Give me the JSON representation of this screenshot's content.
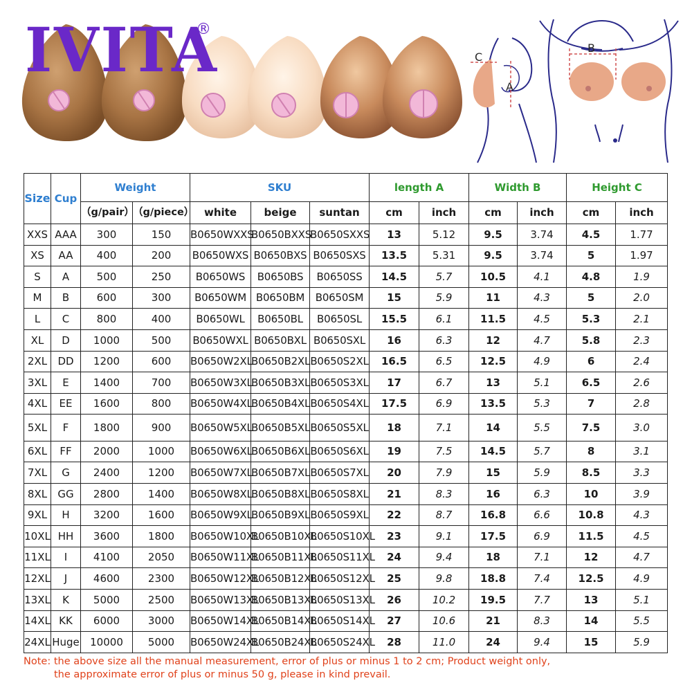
{
  "brand": {
    "name": "IVITA",
    "registered": "®"
  },
  "diagram": {
    "label_a": "A",
    "label_b": "B",
    "label_c": "C"
  },
  "colors": {
    "brand": "#6a28c8",
    "header_blue": "#2f7fd0",
    "header_green": "#2f9a2f",
    "note_red": "#e0421b"
  },
  "table": {
    "headers": {
      "size": "Size",
      "cup": "Cup",
      "weight": "Weight",
      "sku": "SKU",
      "length": "length A",
      "width": "Width B",
      "height": "Height C",
      "g_pair": "（g/pair）",
      "g_piece": "（g/piece）",
      "white": "white",
      "beige": "beige",
      "suntan": "suntan",
      "cm1": "cm",
      "inch1": "inch",
      "cm2": "cm",
      "inch2": "inch",
      "cm3": "cm",
      "inch3": "inch"
    },
    "rows": [
      {
        "size": "XXS",
        "cup": "AAA",
        "pair": "300",
        "piece": "150",
        "white": "B0650WXXS",
        "beige": "B0650BXXS",
        "suntan": "B0650SXXS",
        "len_cm": "13",
        "len_in": "5.12",
        "wid_cm": "9.5",
        "wid_in": "3.74",
        "hei_cm": "4.5",
        "hei_in": "1.77"
      },
      {
        "size": "XS",
        "cup": "AA",
        "pair": "400",
        "piece": "200",
        "white": "B0650WXS",
        "beige": "B0650BXS",
        "suntan": "B0650SXS",
        "len_cm": "13.5",
        "len_in": "5.31",
        "wid_cm": "9.5",
        "wid_in": "3.74",
        "hei_cm": "5",
        "hei_in": "1.97"
      },
      {
        "size": "S",
        "cup": "A",
        "pair": "500",
        "piece": "250",
        "white": "B0650WS",
        "beige": "B0650BS",
        "suntan": "B0650SS",
        "len_cm": "14.5",
        "len_in": "5.7",
        "wid_cm": "10.5",
        "wid_in": "4.1",
        "hei_cm": "4.8",
        "hei_in": "1.9"
      },
      {
        "size": "M",
        "cup": "B",
        "pair": "600",
        "piece": "300",
        "white": "B0650WM",
        "beige": "B0650BM",
        "suntan": "B0650SM",
        "len_cm": "15",
        "len_in": "5.9",
        "wid_cm": "11",
        "wid_in": "4.3",
        "hei_cm": "5",
        "hei_in": "2.0"
      },
      {
        "size": "L",
        "cup": "C",
        "pair": "800",
        "piece": "400",
        "white": "B0650WL",
        "beige": "B0650BL",
        "suntan": "B0650SL",
        "len_cm": "15.5",
        "len_in": "6.1",
        "wid_cm": "11.5",
        "wid_in": "4.5",
        "hei_cm": "5.3",
        "hei_in": "2.1"
      },
      {
        "size": "XL",
        "cup": "D",
        "pair": "1000",
        "piece": "500",
        "white": "B0650WXL",
        "beige": "B0650BXL",
        "suntan": "B0650SXL",
        "len_cm": "16",
        "len_in": "6.3",
        "wid_cm": "12",
        "wid_in": "4.7",
        "hei_cm": "5.8",
        "hei_in": "2.3"
      },
      {
        "size": "2XL",
        "cup": "DD",
        "pair": "1200",
        "piece": "600",
        "white": "B0650W2XL",
        "beige": "B0650B2XL",
        "suntan": "B0650S2XL",
        "len_cm": "16.5",
        "len_in": "6.5",
        "wid_cm": "12.5",
        "wid_in": "4.9",
        "hei_cm": "6",
        "hei_in": "2.4"
      },
      {
        "size": "3XL",
        "cup": "E",
        "pair": "1400",
        "piece": "700",
        "white": "B0650W3XL",
        "beige": "B0650B3XL",
        "suntan": "B0650S3XL",
        "len_cm": "17",
        "len_in": "6.7",
        "wid_cm": "13",
        "wid_in": "5.1",
        "hei_cm": "6.5",
        "hei_in": "2.6"
      },
      {
        "size": "4XL",
        "cup": "EE",
        "pair": "1600",
        "piece": "800",
        "white": "B0650W4XL",
        "beige": "B0650B4XL",
        "suntan": "B0650S4XL",
        "len_cm": "17.5",
        "len_in": "6.9",
        "wid_cm": "13.5",
        "wid_in": "5.3",
        "hei_cm": "7",
        "hei_in": "2.8"
      },
      {
        "size": "5XL",
        "cup": "F",
        "pair": "1800",
        "piece": "900",
        "white": "B0650W5XL",
        "beige": "B0650B5XL",
        "suntan": "B0650S5XL",
        "len_cm": "18",
        "len_in": "7.1",
        "wid_cm": "14",
        "wid_in": "5.5",
        "hei_cm": "7.5",
        "hei_in": "3.0"
      },
      {
        "size": "6XL",
        "cup": "FF",
        "pair": "2000",
        "piece": "1000",
        "white": "B0650W6XL",
        "beige": "B0650B6XL",
        "suntan": "B0650S6XL",
        "len_cm": "19",
        "len_in": "7.5",
        "wid_cm": "14.5",
        "wid_in": "5.7",
        "hei_cm": "8",
        "hei_in": "3.1"
      },
      {
        "size": "7XL",
        "cup": "G",
        "pair": "2400",
        "piece": "1200",
        "white": "B0650W7XL",
        "beige": "B0650B7XL",
        "suntan": "B0650S7XL",
        "len_cm": "20",
        "len_in": "7.9",
        "wid_cm": "15",
        "wid_in": "5.9",
        "hei_cm": "8.5",
        "hei_in": "3.3"
      },
      {
        "size": "8XL",
        "cup": "GG",
        "pair": "2800",
        "piece": "1400",
        "white": "B0650W8XL",
        "beige": "B0650B8XL",
        "suntan": "B0650S8XL",
        "len_cm": "21",
        "len_in": "8.3",
        "wid_cm": "16",
        "wid_in": "6.3",
        "hei_cm": "10",
        "hei_in": "3.9"
      },
      {
        "size": "9XL",
        "cup": "H",
        "pair": "3200",
        "piece": "1600",
        "white": "B0650W9XL",
        "beige": "B0650B9XL",
        "suntan": "B0650S9XL",
        "len_cm": "22",
        "len_in": "8.7",
        "wid_cm": "16.8",
        "wid_in": "6.6",
        "hei_cm": "10.8",
        "hei_in": "4.3"
      },
      {
        "size": "10XL",
        "cup": "HH",
        "pair": "3600",
        "piece": "1800",
        "white": "B0650W10XL",
        "beige": "B0650B10XL",
        "suntan": "B0650S10XL",
        "len_cm": "23",
        "len_in": "9.1",
        "wid_cm": "17.5",
        "wid_in": "6.9",
        "hei_cm": "11.5",
        "hei_in": "4.5"
      },
      {
        "size": "11XL",
        "cup": "I",
        "pair": "4100",
        "piece": "2050",
        "white": "B0650W11XL",
        "beige": "B0650B11XL",
        "suntan": "B0650S11XL",
        "len_cm": "24",
        "len_in": "9.4",
        "wid_cm": "18",
        "wid_in": "7.1",
        "hei_cm": "12",
        "hei_in": "4.7"
      },
      {
        "size": "12XL",
        "cup": "J",
        "pair": "4600",
        "piece": "2300",
        "white": "B0650W12XL",
        "beige": "B0650B12XL",
        "suntan": "B0650S12XL",
        "len_cm": "25",
        "len_in": "9.8",
        "wid_cm": "18.8",
        "wid_in": "7.4",
        "hei_cm": "12.5",
        "hei_in": "4.9"
      },
      {
        "size": "13XL",
        "cup": "K",
        "pair": "5000",
        "piece": "2500",
        "white": "B0650W13XL",
        "beige": "B0650B13XL",
        "suntan": "B0650S13XL",
        "len_cm": "26",
        "len_in": "10.2",
        "wid_cm": "19.5",
        "wid_in": "7.7",
        "hei_cm": "13",
        "hei_in": "5.1"
      },
      {
        "size": "14XL",
        "cup": "KK",
        "pair": "6000",
        "piece": "3000",
        "white": "B0650W14XL",
        "beige": "B0650B14XL",
        "suntan": "B0650S14XL",
        "len_cm": "27",
        "len_in": "10.6",
        "wid_cm": "21",
        "wid_in": "8.3",
        "hei_cm": "14",
        "hei_in": "5.5"
      },
      {
        "size": "24XL",
        "cup": "Huge",
        "pair": "10000",
        "piece": "5000",
        "white": "B0650W24XL",
        "beige": "B0650B24XL",
        "suntan": "B0650S24XL",
        "len_cm": "28",
        "len_in": "11.0",
        "wid_cm": "24",
        "wid_in": "9.4",
        "hei_cm": "15",
        "hei_in": "5.9"
      }
    ]
  },
  "note": {
    "line1": "Note: the above size all the manual measurement, error of plus or minus 1 to 2 cm; Product weight only,",
    "line2": "the approximate error of plus or minus 50 g, please in kind prevail."
  }
}
